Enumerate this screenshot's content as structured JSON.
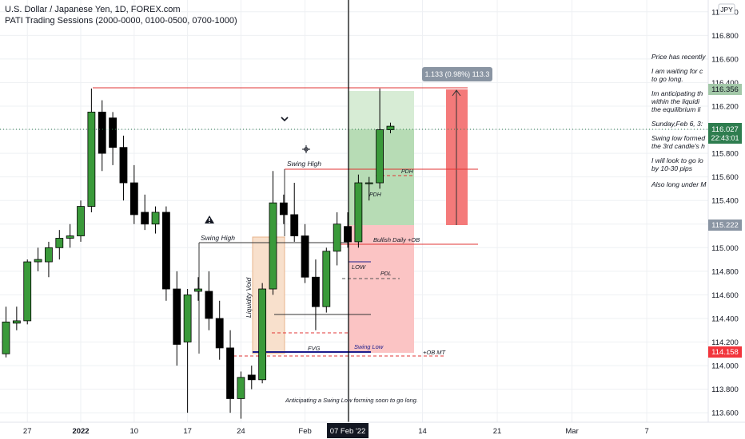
{
  "header": {
    "title": "U.S. Dollar / Japanese Yen, 1D, FOREX.com",
    "indicator": "PATI Trading Sessions (2000-0000, 0100-0500, 0700-1000)"
  },
  "currency_badge": "JPY",
  "chart_data": {
    "type": "candlestick",
    "symbol": "USDJPY",
    "timeframe": "1D",
    "ylim": [
      113.52,
      117.1
    ],
    "y_ticks": [
      113.6,
      113.8,
      114.0,
      114.2,
      114.4,
      114.6,
      114.8,
      115.0,
      115.2,
      115.4,
      115.6,
      115.8,
      116.0,
      116.2,
      116.4,
      116.6,
      116.8,
      117.0
    ],
    "y_tick_labels": [
      "113.600",
      "113.800",
      "114.000",
      "114.200",
      "114.400",
      "114.600",
      "114.800",
      "115.000",
      "115.200",
      "115.400",
      "115.600",
      "115.800",
      "116.000",
      "116.200",
      "116.400",
      "116.600",
      "116.800",
      "117.000"
    ],
    "x_range": [
      0,
      66
    ],
    "x_ticks": [
      {
        "i": 2,
        "label": "27"
      },
      {
        "i": 7,
        "label": "2022"
      },
      {
        "i": 12,
        "label": "10"
      },
      {
        "i": 17,
        "label": "17"
      },
      {
        "i": 22,
        "label": "24"
      },
      {
        "i": 28,
        "label": "Feb"
      },
      {
        "i": 32,
        "label": "07 Feb '22",
        "highlight": true
      },
      {
        "i": 39,
        "label": "14"
      },
      {
        "i": 46,
        "label": "21"
      },
      {
        "i": 53,
        "label": "Mar"
      },
      {
        "i": 60,
        "label": "7"
      }
    ],
    "candles": [
      {
        "i": 0,
        "o": 114.1,
        "h": 114.5,
        "l": 114.07,
        "c": 114.37
      },
      {
        "i": 1,
        "o": 114.36,
        "h": 114.5,
        "l": 114.3,
        "c": 114.38
      },
      {
        "i": 2,
        "o": 114.38,
        "h": 114.9,
        "l": 114.35,
        "c": 114.88
      },
      {
        "i": 3,
        "o": 114.88,
        "h": 115.0,
        "l": 114.8,
        "c": 114.9
      },
      {
        "i": 4,
        "o": 114.88,
        "h": 115.05,
        "l": 114.75,
        "c": 115.0
      },
      {
        "i": 5,
        "o": 115.0,
        "h": 115.15,
        "l": 114.9,
        "c": 115.08
      },
      {
        "i": 6,
        "o": 115.08,
        "h": 115.2,
        "l": 115.0,
        "c": 115.1
      },
      {
        "i": 7,
        "o": 115.1,
        "h": 115.4,
        "l": 115.05,
        "c": 115.35
      },
      {
        "i": 8,
        "o": 115.35,
        "h": 116.35,
        "l": 115.3,
        "c": 116.15
      },
      {
        "i": 9,
        "o": 116.15,
        "h": 116.25,
        "l": 115.65,
        "c": 115.8
      },
      {
        "i": 10,
        "o": 116.1,
        "h": 116.15,
        "l": 115.7,
        "c": 115.85
      },
      {
        "i": 11,
        "o": 115.85,
        "h": 115.95,
        "l": 115.4,
        "c": 115.55
      },
      {
        "i": 12,
        "o": 115.55,
        "h": 115.7,
        "l": 115.2,
        "c": 115.28
      },
      {
        "i": 13,
        "o": 115.3,
        "h": 115.45,
        "l": 115.15,
        "c": 115.2
      },
      {
        "i": 14,
        "o": 115.2,
        "h": 115.35,
        "l": 115.12,
        "c": 115.3
      },
      {
        "i": 15,
        "o": 115.3,
        "h": 115.35,
        "l": 114.55,
        "c": 114.65
      },
      {
        "i": 16,
        "o": 114.65,
        "h": 114.8,
        "l": 114.0,
        "c": 114.18
      },
      {
        "i": 17,
        "o": 114.2,
        "h": 114.65,
        "l": 113.6,
        "c": 114.6
      },
      {
        "i": 18,
        "o": 114.63,
        "h": 114.75,
        "l": 114.55,
        "c": 114.65
      },
      {
        "i": 19,
        "o": 114.63,
        "h": 114.8,
        "l": 114.3,
        "c": 114.4
      },
      {
        "i": 20,
        "o": 114.4,
        "h": 114.55,
        "l": 114.05,
        "c": 114.15
      },
      {
        "i": 21,
        "o": 114.15,
        "h": 114.3,
        "l": 113.6,
        "c": 113.72
      },
      {
        "i": 22,
        "o": 113.72,
        "h": 113.95,
        "l": 113.55,
        "c": 113.9
      },
      {
        "i": 23,
        "o": 113.92,
        "h": 114.0,
        "l": 113.8,
        "c": 113.88
      },
      {
        "i": 24,
        "o": 113.88,
        "h": 114.7,
        "l": 113.85,
        "c": 114.65
      },
      {
        "i": 25,
        "o": 114.65,
        "h": 115.65,
        "l": 114.6,
        "c": 115.38
      },
      {
        "i": 26,
        "o": 115.38,
        "h": 115.45,
        "l": 115.2,
        "c": 115.28
      },
      {
        "i": 27,
        "o": 115.28,
        "h": 115.55,
        "l": 115.05,
        "c": 115.1
      },
      {
        "i": 28,
        "o": 115.1,
        "h": 115.2,
        "l": 114.7,
        "c": 114.75
      },
      {
        "i": 29,
        "o": 114.75,
        "h": 114.9,
        "l": 114.3,
        "c": 114.5
      },
      {
        "i": 30,
        "o": 114.5,
        "h": 115.0,
        "l": 114.45,
        "c": 114.97
      },
      {
        "i": 31,
        "o": 114.97,
        "h": 115.3,
        "l": 114.85,
        "c": 115.2
      },
      {
        "i": 32,
        "o": 115.18,
        "h": 115.3,
        "l": 115.0,
        "c": 115.05
      },
      {
        "i": 33,
        "o": 115.05,
        "h": 115.62,
        "l": 115.0,
        "c": 115.55
      },
      {
        "i": 34,
        "o": 115.55,
        "h": 115.6,
        "l": 115.4,
        "c": 115.55
      },
      {
        "i": 35,
        "o": 115.55,
        "h": 116.35,
        "l": 115.5,
        "c": 116.0
      },
      {
        "i": 36,
        "o": 116.0,
        "h": 116.06,
        "l": 115.97,
        "c": 116.03
      }
    ],
    "current_price": 116.027,
    "levels": [
      {
        "name": "price-label-116.356",
        "value": 116.356
      },
      {
        "name": "price-label-116.027",
        "value": 116.027
      },
      {
        "name": "price-label-115.222",
        "value": 115.222
      },
      {
        "name": "price-label-114.158",
        "value": 114.158
      }
    ],
    "annotations": {
      "swing_high_upper": "Swing High",
      "swing_high_lower": "Swing High",
      "liquidity_void": "Liquidity Void",
      "fvg": "FVG",
      "swing_low": "Swing Low",
      "ob_mt": "+OB MT",
      "bullish_ob": "Bullish Daily +OB",
      "low": "LOW",
      "pdl": "PDL",
      "pdh_upper": "PDH",
      "pdh_lower": "PDH",
      "bottom_note": "Anticipating a Swing Low forming soon to go long."
    },
    "long_position": {
      "entry": 115.222,
      "target": 116.356,
      "stop": 114.158
    },
    "measure": {
      "label": "1.133 (0.98%) 113.3",
      "from": 115.222,
      "to": 116.356
    }
  },
  "price_labels": {
    "p116356": "116.356",
    "p116027": "116.027",
    "countdown": "22:43:01",
    "p115222": "115.222",
    "p114158": "114.158"
  },
  "notes": [
    "Price has recently",
    "I am waiting for c",
    "to go long.",
    "Im anticipating th",
    "within the liquidi",
    "the equilibrium li",
    "Sunday,Feb 6,  3:",
    "Swing low formed",
    "the 3rd candle's h",
    "I will look to go lo",
    "by 10-30 pips",
    "Also long under M"
  ],
  "colors": {
    "up": "#3a9a3a",
    "down": "#000000",
    "grid": "#eef0f3",
    "red": "#e03434",
    "profit_zone": "#b7dcb5",
    "loss_zone": "#fbc4c4",
    "void_zone": "#f8e0cc",
    "crosshair": "#000000",
    "current_price": "#2e7d4f",
    "stop_label": "#f2353c"
  }
}
